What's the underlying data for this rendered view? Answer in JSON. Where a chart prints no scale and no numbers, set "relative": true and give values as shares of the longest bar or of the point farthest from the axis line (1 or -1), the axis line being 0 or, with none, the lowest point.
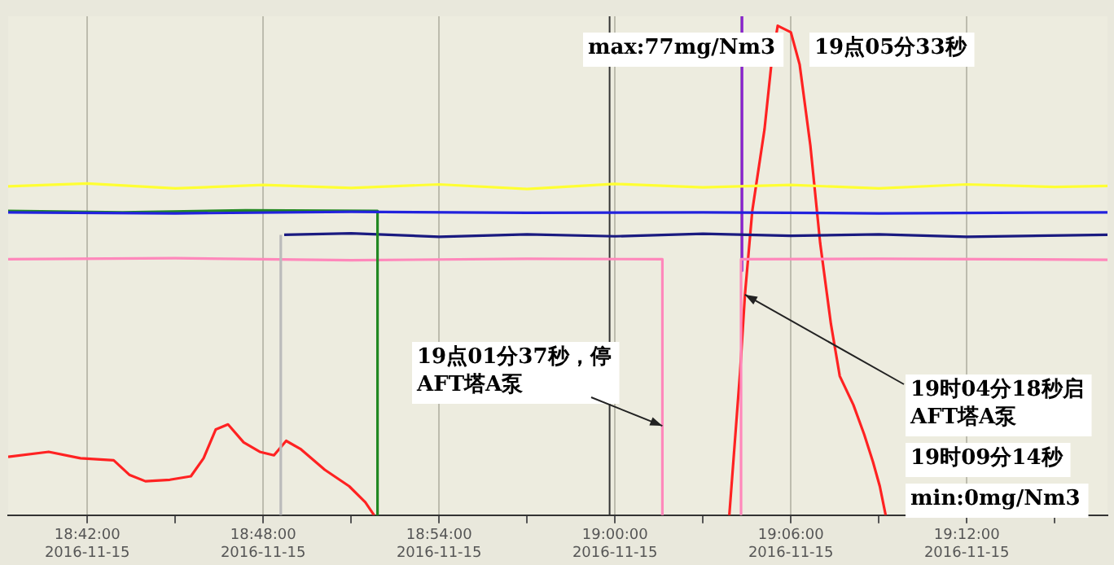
{
  "chart_data": {
    "type": "line",
    "relative": true,
    "grid": "x",
    "legend": false,
    "marker": "none",
    "line_style": "solid",
    "xlim": [
      "2016-11-15T18:39:18",
      "2016-11-15T19:16:48"
    ],
    "xticks": [
      {
        "value": "2016-11-15T18:42",
        "label": "18:42:00\n2016-11-15"
      },
      {
        "value": "2016-11-15T18:45",
        "label": null
      },
      {
        "value": "2016-11-15T18:48",
        "label": "18:48:00\n2016-11-15"
      },
      {
        "value": "2016-11-15T18:51",
        "label": null
      },
      {
        "value": "2016-11-15T18:54",
        "label": "18:54:00\n2016-11-15"
      },
      {
        "value": "2016-11-15T18:57",
        "label": null
      },
      {
        "value": "2016-11-15T19:00",
        "label": "19:00:00\n2016-11-15"
      },
      {
        "value": "2016-11-15T19:03",
        "label": null
      },
      {
        "value": "2016-11-15T19:06",
        "label": "19:06:00\n2016-11-15"
      },
      {
        "value": "2016-11-15T19:09",
        "label": null
      },
      {
        "value": "2016-11-15T19:12",
        "label": "19:12:00\n2016-11-15"
      },
      {
        "value": "2016-11-15T19:15",
        "label": null
      }
    ],
    "series": [
      {
        "color": "#ffff33",
        "x": [
          "2016-11-15T18:39:18",
          "2016-11-15T18:42:00",
          "2016-11-15T18:45:00",
          "2016-11-15T18:48:00",
          "2016-11-15T18:51:00",
          "2016-11-15T18:54:00",
          "2016-11-15T18:57:00",
          "2016-11-15T19:00:00",
          "2016-11-15T19:03:00",
          "2016-11-15T19:06:00",
          "2016-11-15T19:09:00",
          "2016-11-15T19:12:00",
          "2016-11-15T19:15:00",
          "2016-11-15T19:16:48"
        ],
        "values": [
          0.659,
          0.665,
          0.655,
          0.662,
          0.656,
          0.663,
          0.654,
          0.664,
          0.657,
          0.662,
          0.655,
          0.663,
          0.658,
          0.66
        ]
      },
      {
        "color": "#2222dd",
        "x": [
          "2016-11-15T18:39:18",
          "2016-11-15T18:45:00",
          "2016-11-15T18:51:00",
          "2016-11-15T18:57:00",
          "2016-11-15T19:03:00",
          "2016-11-15T19:09:00",
          "2016-11-15T19:16:48"
        ],
        "values": [
          0.607,
          0.605,
          0.608,
          0.606,
          0.607,
          0.605,
          0.607
        ]
      },
      {
        "color": "#228822",
        "x": [
          "2016-11-15T18:39:18",
          "2016-11-15T18:43:12",
          "2016-11-15T18:47:24",
          "2016-11-15T18:51:54",
          "2016-11-15T18:51:54"
        ],
        "values": [
          0.61,
          0.607,
          0.611,
          0.61,
          0
        ]
      },
      {
        "color": "#bbbbbb",
        "x": [
          "2016-11-15T18:48:36",
          "2016-11-15T18:48:36"
        ],
        "values": [
          0,
          0.562
        ]
      },
      {
        "color": "#1a1a80",
        "x": [
          "2016-11-15T18:48:43",
          "2016-11-15T18:51:00",
          "2016-11-15T18:54:00",
          "2016-11-15T18:57:00",
          "2016-11-15T19:00:00",
          "2016-11-15T19:03:00",
          "2016-11-15T19:06:00",
          "2016-11-15T19:09:00",
          "2016-11-15T19:12:00",
          "2016-11-15T19:16:48"
        ],
        "values": [
          0.562,
          0.565,
          0.558,
          0.563,
          0.559,
          0.564,
          0.56,
          0.563,
          0.558,
          0.562
        ]
      },
      {
        "color": "#ff88bb",
        "x": [
          "2016-11-15T18:39:18",
          "2016-11-15T18:45:00",
          "2016-11-15T18:51:00",
          "2016-11-15T18:57:00",
          "2016-11-15T19:01:37",
          "2016-11-15T19:01:37",
          "2016-11-15T19:03:00",
          "2016-11-15T19:04:18",
          "2016-11-15T19:04:18",
          "2016-11-15T19:09:00",
          "2016-11-15T19:16:48"
        ],
        "values": [
          0.513,
          0.515,
          0.511,
          0.514,
          0.513,
          0,
          null,
          0,
          0.513,
          0.514,
          0.512
        ]
      },
      {
        "color": "#8822cc",
        "x": [
          "2016-11-15T19:04:20",
          "2016-11-15T19:04:20"
        ],
        "values": [
          1,
          0.49
        ]
      },
      {
        "color": "#ff2222",
        "x": [
          "2016-11-15T18:39:18",
          "2016-11-15T18:40:41",
          "2016-11-15T18:41:46",
          "2016-11-15T18:42:54",
          "2016-11-15T18:43:26",
          "2016-11-15T18:43:59",
          "2016-11-15T18:44:49",
          "2016-11-15T18:45:32",
          "2016-11-15T18:45:58",
          "2016-11-15T18:46:23",
          "2016-11-15T18:46:48",
          "2016-11-15T18:47:20",
          "2016-11-15T18:47:53",
          "2016-11-15T18:48:22",
          "2016-11-15T18:48:47",
          "2016-11-15T18:49:16",
          "2016-11-15T18:50:06",
          "2016-11-15T18:50:56",
          "2016-11-15T18:51:29",
          "2016-11-15T18:51:47",
          "2016-11-15T18:57:00",
          "2016-11-15T19:03:54",
          "2016-11-15T19:04:16",
          "2016-11-15T19:04:26",
          "2016-11-15T19:04:41",
          "2016-11-15T19:05:06",
          "2016-11-15T19:05:20",
          "2016-11-15T19:05:33",
          "2016-11-15T19:06:00",
          "2016-11-15T19:06:18",
          "2016-11-15T19:06:40",
          "2016-11-15T19:07:00",
          "2016-11-15T19:07:22",
          "2016-11-15T19:07:40",
          "2016-11-15T19:08:08",
          "2016-11-15T19:08:30",
          "2016-11-15T19:08:48",
          "2016-11-15T19:09:02",
          "2016-11-15T19:09:14"
        ],
        "values": [
          0.117,
          0.127,
          0.114,
          0.11,
          0.081,
          0.068,
          0.071,
          0.078,
          0.114,
          0.172,
          0.182,
          0.146,
          0.127,
          0.12,
          0.149,
          0.133,
          0.091,
          0.058,
          0.026,
          0,
          null,
          0,
          0.286,
          0.442,
          0.61,
          0.773,
          0.903,
          0.981,
          0.968,
          0.903,
          0.74,
          0.545,
          0.383,
          0.279,
          0.221,
          0.162,
          0.107,
          0.058,
          0
        ]
      }
    ],
    "ref_lines": [
      {
        "axis": "x",
        "value": "2016-11-15T18:59:49",
        "color": "#333333"
      },
      {
        "axis": "x",
        "value": "2016-11-15T19:04:18",
        "color": "#aaaaaa"
      }
    ],
    "annotations": [
      "max:77mg/Nm3",
      "19点05分33秒",
      {
        "text": "19点01分37秒，停AFT塔A泵",
        "x": "2016-11-15T19:01:37",
        "y": 0.179
      },
      {
        "text": "19时04分18秒启AFT塔A泵",
        "x": "2016-11-15T19:04:26",
        "y": 0.442
      },
      "19时09分14秒",
      "min:0mg/Nm3"
    ]
  }
}
